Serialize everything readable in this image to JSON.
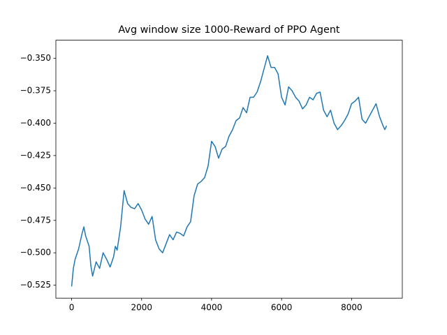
{
  "chart_data": {
    "type": "line",
    "title": "Avg window size 1000-Reward of PPO Agent",
    "x": [
      0,
      50,
      100,
      200,
      300,
      350,
      400,
      500,
      550,
      600,
      700,
      800,
      900,
      1000,
      1100,
      1200,
      1250,
      1300,
      1400,
      1500,
      1600,
      1700,
      1800,
      1900,
      2000,
      2100,
      2200,
      2300,
      2400,
      2500,
      2600,
      2700,
      2800,
      2900,
      3000,
      3100,
      3200,
      3300,
      3400,
      3500,
      3600,
      3700,
      3800,
      3900,
      4000,
      4100,
      4200,
      4300,
      4400,
      4500,
      4600,
      4700,
      4800,
      4900,
      5000,
      5100,
      5200,
      5300,
      5400,
      5500,
      5600,
      5700,
      5800,
      5900,
      6000,
      6100,
      6200,
      6300,
      6400,
      6500,
      6600,
      6700,
      6800,
      6900,
      7000,
      7100,
      7200,
      7300,
      7400,
      7500,
      7600,
      7700,
      7800,
      7900,
      8000,
      8100,
      8200,
      8300,
      8400,
      8500,
      8600,
      8700,
      8800,
      8900,
      8950,
      9000
    ],
    "series": [
      {
        "color": "#1f77b4",
        "values": [
          -0.526,
          -0.512,
          -0.505,
          -0.497,
          -0.485,
          -0.48,
          -0.487,
          -0.495,
          -0.51,
          -0.518,
          -0.507,
          -0.512,
          -0.5,
          -0.505,
          -0.511,
          -0.503,
          -0.495,
          -0.498,
          -0.48,
          -0.452,
          -0.462,
          -0.465,
          -0.466,
          -0.462,
          -0.467,
          -0.474,
          -0.478,
          -0.472,
          -0.49,
          -0.497,
          -0.5,
          -0.493,
          -0.486,
          -0.49,
          -0.484,
          -0.485,
          -0.487,
          -0.48,
          -0.476,
          -0.456,
          -0.447,
          -0.445,
          -0.442,
          -0.433,
          -0.414,
          -0.418,
          -0.427,
          -0.42,
          -0.418,
          -0.41,
          -0.405,
          -0.398,
          -0.396,
          -0.388,
          -0.392,
          -0.38,
          -0.38,
          -0.376,
          -0.368,
          -0.358,
          -0.348,
          -0.357,
          -0.357,
          -0.362,
          -0.38,
          -0.386,
          -0.372,
          -0.375,
          -0.38,
          -0.383,
          -0.389,
          -0.386,
          -0.38,
          -0.382,
          -0.377,
          -0.376,
          -0.39,
          -0.395,
          -0.39,
          -0.4,
          -0.405,
          -0.402,
          -0.398,
          -0.393,
          -0.385,
          -0.383,
          -0.38,
          -0.397,
          -0.4,
          -0.395,
          -0.39,
          -0.385,
          -0.395,
          -0.402,
          -0.405,
          -0.402
        ]
      }
    ],
    "xlim": [
      -450,
      9450
    ],
    "xticks": [
      0,
      2000,
      4000,
      6000,
      8000
    ],
    "ylim": [
      -0.535,
      -0.336
    ],
    "yticks": [
      {
        "value": -0.525,
        "label": "−0.525"
      },
      {
        "value": -0.5,
        "label": "−0.500"
      },
      {
        "value": -0.475,
        "label": "−0.475"
      },
      {
        "value": -0.45,
        "label": "−0.450"
      },
      {
        "value": -0.425,
        "label": "−0.425"
      },
      {
        "value": -0.4,
        "label": "−0.400"
      },
      {
        "value": -0.375,
        "label": "−0.375"
      },
      {
        "value": -0.35,
        "label": "−0.350"
      }
    ]
  }
}
